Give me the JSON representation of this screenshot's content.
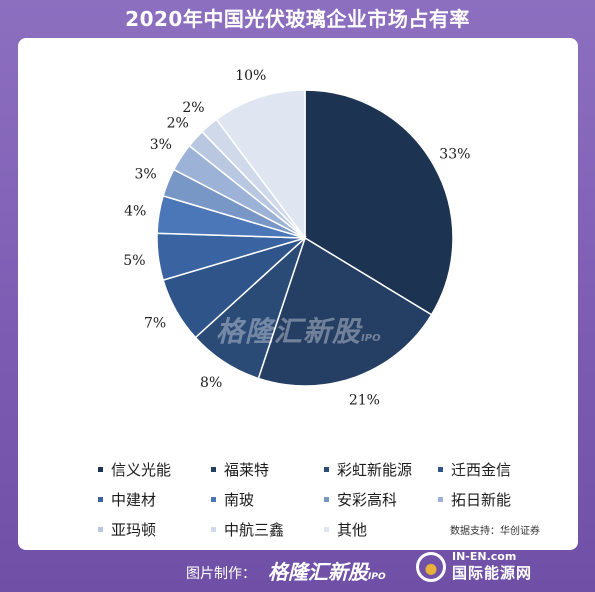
{
  "title": "2020年中国光伏玻璃企业市场占有率",
  "chart_data": {
    "type": "pie",
    "title": "2020年中国光伏玻璃企业市场占有率",
    "labels": [
      "信义光能",
      "福莱特",
      "彩虹新能源",
      "迁西金信",
      "中建材",
      "南玻",
      "安彩高科",
      "拓日新能",
      "亚玛顿",
      "中航三鑫",
      "其他"
    ],
    "values": [
      33,
      21,
      8,
      7,
      5,
      4,
      3,
      3,
      2,
      2,
      10
    ],
    "value_labels": [
      "33%",
      "21%",
      "8%",
      "7%",
      "5%",
      "4%",
      "3%",
      "3%",
      "2%",
      "2%",
      "10%"
    ],
    "colors": [
      "#1c3352",
      "#253e64",
      "#2b4b77",
      "#2e5489",
      "#3a64a1",
      "#4b76b7",
      "#7896c6",
      "#9cb2d6",
      "#b9c7e1",
      "#cfd9ea",
      "#dfe6f1"
    ],
    "legend_position": "bottom"
  },
  "watermark": "格隆汇新股",
  "watermark_small": "IPO",
  "source": "数据支持：华创证券",
  "footer": {
    "label": "图片制作：",
    "brand": "格隆汇新股",
    "brand_small": "IPO",
    "site_en": "IN-EN.com",
    "site_cn": "国际能源网"
  }
}
